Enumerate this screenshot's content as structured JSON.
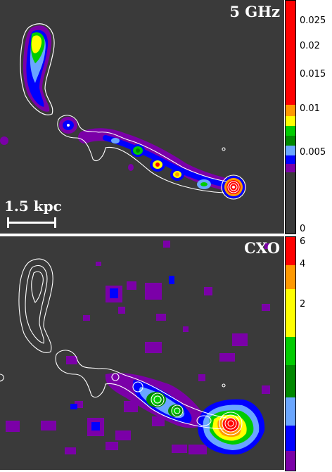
{
  "top_panel": {
    "label": "5 GHz",
    "scale_label": "1.5 kpc",
    "colorbar_ticks": [
      "0.025",
      "0.02",
      "0.015",
      "0.01",
      "0.005",
      "0"
    ]
  },
  "bottom_panel": {
    "label": "CXO",
    "colorbar_ticks": [
      "6",
      "4",
      "2"
    ]
  },
  "colors": {
    "background": "#3a3a3a",
    "contour": "#ffffff",
    "scale": [
      "#7b00a8",
      "#0000ff",
      "#6aa6ff",
      "#008800",
      "#00cc00",
      "#ffff00",
      "#ff9900",
      "#ff0000"
    ]
  }
}
